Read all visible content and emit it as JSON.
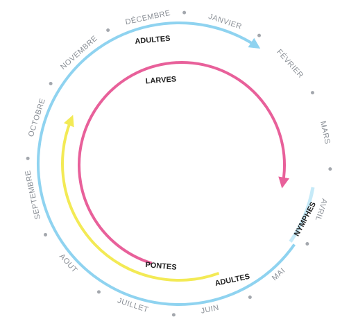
{
  "months": [
    "JANVIER",
    "FÉVRIER",
    "MARS",
    "AVRIL",
    "MAI",
    "JUIN",
    "JUILLET",
    "AOUT",
    "SEPTEMBRE",
    "OCTOBRE",
    "NOVEMBRE",
    "DÉCEMBRE"
  ],
  "stages": [
    {
      "label": "ADULTES"
    },
    {
      "label": "LARVES"
    },
    {
      "label": "PONTES"
    },
    {
      "label": "ADULTES"
    },
    {
      "label": "NYMPHES"
    }
  ]
}
